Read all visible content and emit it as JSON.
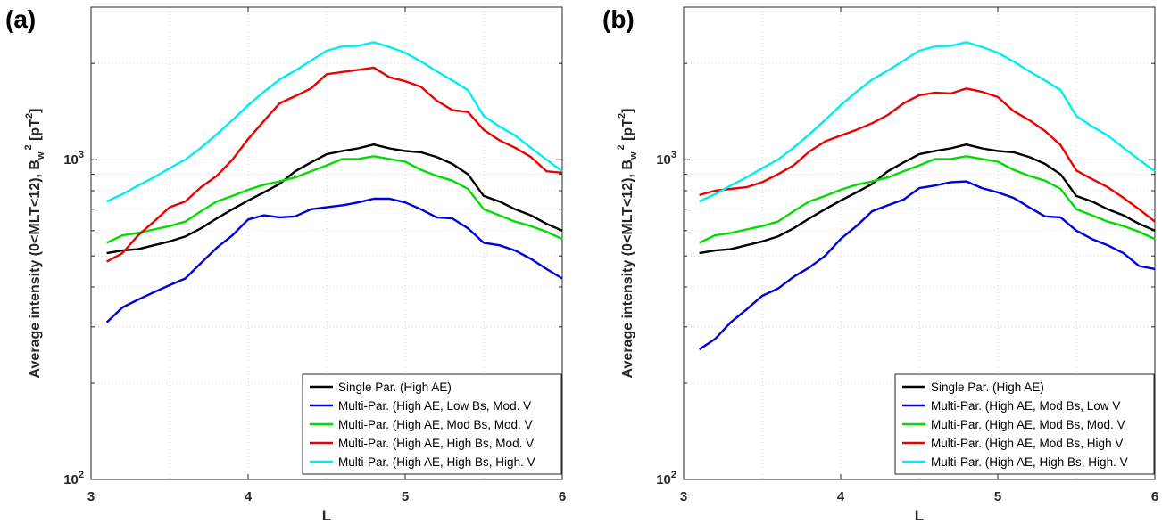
{
  "chart_data": [
    {
      "type": "line",
      "panel_label": "(a)",
      "title": "",
      "xlabel": "L",
      "ylabel": "Average intensity (0<MLT<12), B",
      "ylabel_sub": "w",
      "ylabel_sup": "2",
      "ylabel_unit_prefix": " [pT",
      "ylabel_unit_sup": "2",
      "ylabel_unit_suffix": "]",
      "xlim": [
        3,
        6
      ],
      "ylim": [
        100,
        3000
      ],
      "yscale": "log",
      "xticks": [
        "3",
        "4",
        "5",
        "6"
      ],
      "yticks": [
        {
          "value": 100,
          "base": "10",
          "exp": "2"
        },
        {
          "value": 1000,
          "base": "10",
          "exp": "3"
        }
      ],
      "grid": "dotted",
      "legend_position": "bottom-right",
      "x": [
        3.1,
        3.2,
        3.3,
        3.4,
        3.5,
        3.6,
        3.7,
        3.8,
        3.9,
        4.0,
        4.1,
        4.2,
        4.3,
        4.4,
        4.5,
        4.6,
        4.7,
        4.8,
        4.9,
        5.0,
        5.1,
        5.2,
        5.3,
        5.4,
        5.5,
        5.6,
        5.7,
        5.8,
        5.9,
        6.0
      ],
      "series": [
        {
          "name": "Single Par. (High AE)",
          "color": "#000000",
          "values": [
            510,
            520,
            525,
            540,
            555,
            575,
            610,
            655,
            700,
            745,
            790,
            840,
            920,
            980,
            1040,
            1065,
            1085,
            1115,
            1085,
            1065,
            1055,
            1020,
            970,
            900,
            770,
            740,
            700,
            670,
            630,
            600
          ]
        },
        {
          "name": "Multi-Par. (High AE, Low Bs, Mod. V",
          "color": "#0000dd",
          "values": [
            310,
            345,
            365,
            385,
            405,
            425,
            475,
            530,
            580,
            650,
            670,
            660,
            665,
            700,
            710,
            720,
            735,
            755,
            755,
            735,
            700,
            660,
            655,
            610,
            550,
            540,
            520,
            490,
            455,
            425
          ]
        },
        {
          "name": "Multi-Par. (High AE, Mod Bs, Mod. V",
          "color": "#00dd00",
          "values": [
            550,
            580,
            590,
            605,
            620,
            640,
            690,
            740,
            770,
            805,
            835,
            855,
            880,
            920,
            960,
            1005,
            1005,
            1025,
            1005,
            985,
            930,
            890,
            860,
            810,
            700,
            670,
            640,
            620,
            595,
            565
          ]
        },
        {
          "name": "Multi-Par. (High AE, High Bs, Mod. V",
          "color": "#ee0000",
          "values": [
            480,
            510,
            580,
            640,
            710,
            740,
            820,
            890,
            1000,
            1160,
            1320,
            1500,
            1580,
            1670,
            1850,
            1880,
            1910,
            1940,
            1810,
            1760,
            1690,
            1530,
            1430,
            1410,
            1240,
            1150,
            1090,
            1020,
            920,
            910
          ]
        },
        {
          "name": "Multi-Par. (High AE, High Bs, High. V",
          "color": "#00eeee",
          "values": [
            740,
            780,
            830,
            880,
            940,
            1000,
            1090,
            1200,
            1330,
            1480,
            1630,
            1780,
            1900,
            2040,
            2190,
            2260,
            2270,
            2330,
            2250,
            2160,
            2030,
            1890,
            1770,
            1650,
            1370,
            1270,
            1190,
            1090,
            1000,
            920
          ]
        }
      ]
    },
    {
      "type": "line",
      "panel_label": "(b)",
      "title": "",
      "xlabel": "L",
      "ylabel": "Average intensity (0<MLT<12), B",
      "ylabel_sub": "w",
      "ylabel_sup": "2",
      "ylabel_unit_prefix": " [pT",
      "ylabel_unit_sup": "2",
      "ylabel_unit_suffix": "]",
      "xlim": [
        3,
        6
      ],
      "ylim": [
        100,
        3000
      ],
      "yscale": "log",
      "xticks": [
        "3",
        "4",
        "5",
        "6"
      ],
      "yticks": [
        {
          "value": 100,
          "base": "10",
          "exp": "2"
        },
        {
          "value": 1000,
          "base": "10",
          "exp": "3"
        }
      ],
      "grid": "dotted",
      "legend_position": "bottom-right",
      "x": [
        3.1,
        3.2,
        3.3,
        3.4,
        3.5,
        3.6,
        3.7,
        3.8,
        3.9,
        4.0,
        4.1,
        4.2,
        4.3,
        4.4,
        4.5,
        4.6,
        4.7,
        4.8,
        4.9,
        5.0,
        5.1,
        5.2,
        5.3,
        5.4,
        5.5,
        5.6,
        5.7,
        5.8,
        5.9,
        6.0
      ],
      "series": [
        {
          "name": "Single Par. (High AE)",
          "color": "#000000",
          "values": [
            510,
            520,
            525,
            540,
            555,
            575,
            610,
            655,
            700,
            745,
            790,
            840,
            920,
            980,
            1040,
            1065,
            1085,
            1115,
            1085,
            1065,
            1055,
            1020,
            970,
            900,
            770,
            740,
            700,
            670,
            630,
            600
          ]
        },
        {
          "name": "Multi-Par. (High AE, Mod Bs, Low V",
          "color": "#0000dd",
          "values": [
            255,
            275,
            310,
            340,
            375,
            395,
            430,
            460,
            500,
            565,
            620,
            690,
            720,
            750,
            815,
            830,
            850,
            855,
            815,
            790,
            760,
            710,
            665,
            660,
            600,
            565,
            540,
            510,
            465,
            455
          ]
        },
        {
          "name": "Multi-Par. (High AE, Mod Bs, Mod. V",
          "color": "#00dd00",
          "values": [
            550,
            580,
            590,
            605,
            620,
            640,
            690,
            740,
            770,
            805,
            835,
            855,
            880,
            920,
            960,
            1005,
            1005,
            1025,
            1005,
            985,
            930,
            890,
            860,
            810,
            700,
            670,
            640,
            620,
            595,
            565
          ]
        },
        {
          "name": "Multi-Par. (High AE, Mod Bs, High V",
          "color": "#ee0000",
          "values": [
            775,
            800,
            810,
            820,
            850,
            900,
            960,
            1060,
            1140,
            1190,
            1240,
            1300,
            1380,
            1500,
            1590,
            1620,
            1610,
            1670,
            1630,
            1570,
            1420,
            1330,
            1230,
            1110,
            925,
            870,
            820,
            760,
            700,
            640
          ]
        },
        {
          "name": "Multi-Par. (High AE, High Bs, High. V",
          "color": "#00eeee",
          "values": [
            740,
            780,
            830,
            880,
            940,
            1000,
            1090,
            1200,
            1330,
            1480,
            1630,
            1780,
            1900,
            2040,
            2190,
            2260,
            2270,
            2330,
            2250,
            2160,
            2030,
            1890,
            1770,
            1650,
            1370,
            1270,
            1190,
            1090,
            1000,
            920
          ]
        }
      ]
    }
  ]
}
